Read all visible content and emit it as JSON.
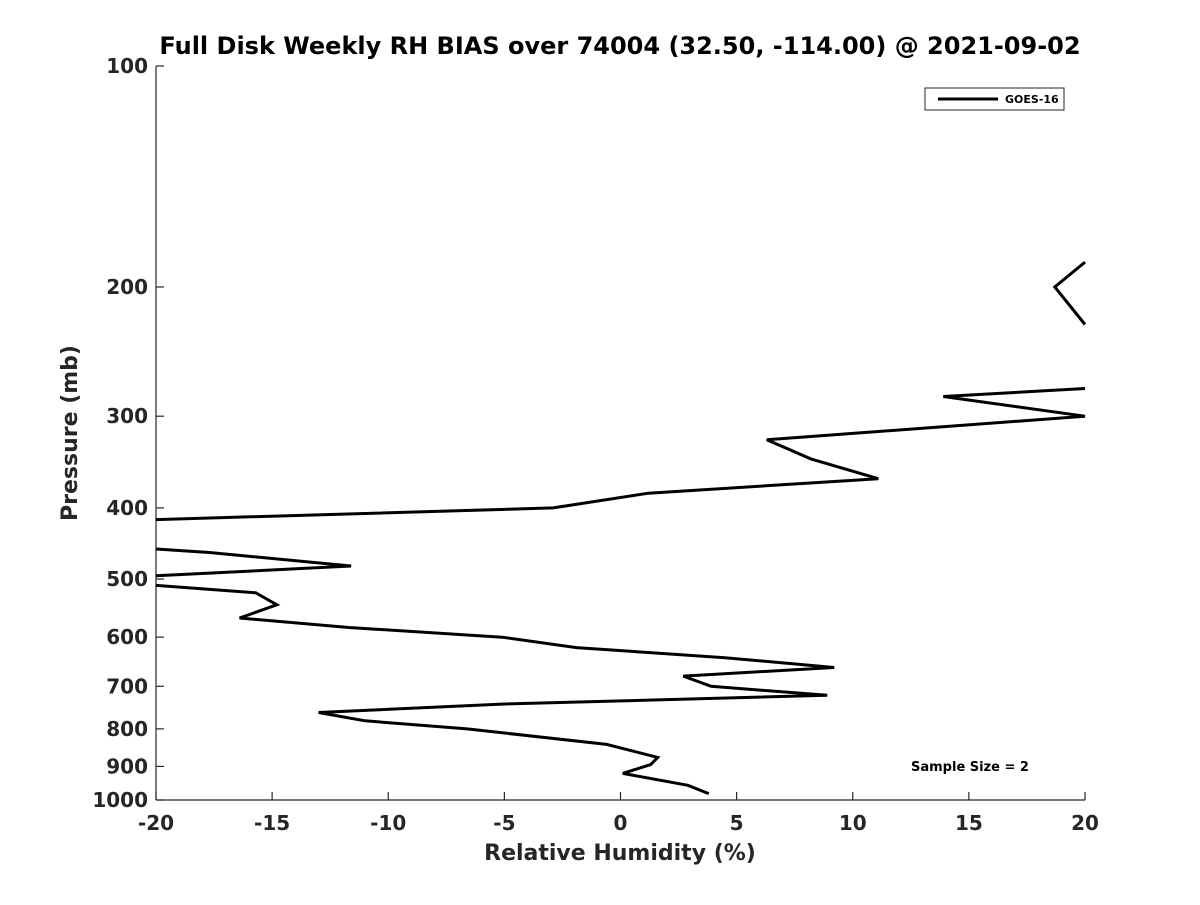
{
  "chart_data": {
    "type": "line",
    "title": "Full Disk Weekly RH BIAS over 74004 (32.50, -114.00) @ 2021-09-02",
    "xlabel": "Relative Humidity (%)",
    "ylabel": "Pressure (mb)",
    "xlim": [
      -20,
      20
    ],
    "ylim": [
      100,
      1000
    ],
    "y_scale": "log",
    "y_reversed": true,
    "x_ticks": [
      -20,
      -15,
      -10,
      -5,
      0,
      5,
      10,
      15,
      20
    ],
    "y_ticks": [
      100,
      200,
      300,
      400,
      500,
      600,
      700,
      800,
      900,
      1000
    ],
    "grid": false,
    "legend_position": "top-right",
    "annotation": "Sample Size = 2",
    "colors": {
      "line": "#000000",
      "axis": "#262626"
    },
    "series": [
      {
        "name": "GOES-16",
        "segments": [
          [
            {
              "x": 20.0,
              "y": 185
            },
            {
              "x": 18.7,
              "y": 200
            },
            {
              "x": 20.0,
              "y": 225
            }
          ],
          [
            {
              "x": 20.0,
              "y": 275
            },
            {
              "x": 13.9,
              "y": 282
            },
            {
              "x": 20.0,
              "y": 300
            },
            {
              "x": 6.3,
              "y": 323
            },
            {
              "x": 8.2,
              "y": 343
            },
            {
              "x": 11.1,
              "y": 365
            },
            {
              "x": 1.2,
              "y": 382
            },
            {
              "x": -2.9,
              "y": 400
            },
            {
              "x": -20.0,
              "y": 415
            }
          ],
          [
            {
              "x": -20.0,
              "y": 455
            },
            {
              "x": -17.7,
              "y": 460
            },
            {
              "x": -11.6,
              "y": 480
            },
            {
              "x": -20.0,
              "y": 495
            }
          ],
          [
            {
              "x": -20.0,
              "y": 510
            },
            {
              "x": -15.7,
              "y": 522
            },
            {
              "x": -14.8,
              "y": 542
            },
            {
              "x": -16.4,
              "y": 565
            },
            {
              "x": -11.7,
              "y": 582
            },
            {
              "x": -5.1,
              "y": 600
            },
            {
              "x": -1.9,
              "y": 620
            },
            {
              "x": 4.5,
              "y": 640
            },
            {
              "x": 9.2,
              "y": 660
            },
            {
              "x": 2.7,
              "y": 678
            },
            {
              "x": 3.9,
              "y": 700
            },
            {
              "x": 8.9,
              "y": 720
            },
            {
              "x": -5.0,
              "y": 740
            },
            {
              "x": -13.0,
              "y": 760
            },
            {
              "x": -11.0,
              "y": 780
            },
            {
              "x": -6.6,
              "y": 800
            },
            {
              "x": -0.6,
              "y": 840
            },
            {
              "x": 1.6,
              "y": 875
            },
            {
              "x": 1.3,
              "y": 895
            },
            {
              "x": 0.1,
              "y": 920
            },
            {
              "x": 2.9,
              "y": 955
            },
            {
              "x": 3.8,
              "y": 980
            }
          ]
        ]
      }
    ]
  }
}
